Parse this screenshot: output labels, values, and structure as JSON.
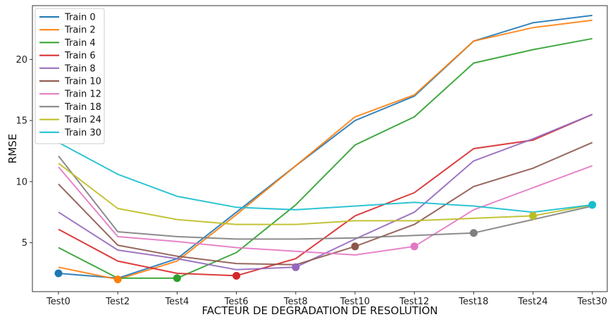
{
  "chart_data": {
    "type": "line",
    "title": "",
    "xlabel": "FACTEUR DE DEGRADATION DE RESOLUTION",
    "ylabel": "RMSE",
    "categories": [
      "Test0",
      "Test2",
      "Test4",
      "Test6",
      "Test8",
      "Test10",
      "Test12",
      "Test18",
      "Test24",
      "Test30"
    ],
    "ylim": [
      1.0,
      24.4
    ],
    "yticks": [
      5,
      10,
      15,
      20
    ],
    "grid": false,
    "legend_position": "top-left",
    "series": [
      {
        "name": "Train 0",
        "color": "#1f77b4",
        "values": [
          2.5,
          2.1,
          3.7,
          7.5,
          11.3,
          15.0,
          17.0,
          21.5,
          23.0,
          23.6
        ],
        "marker_index": 0
      },
      {
        "name": "Train 2",
        "color": "#ff7f0e",
        "values": [
          3.0,
          2.0,
          3.5,
          7.3,
          11.3,
          15.3,
          17.1,
          21.5,
          22.6,
          23.2
        ],
        "marker_index": 1
      },
      {
        "name": "Train 4",
        "color": "#2ca02c",
        "values": [
          4.6,
          2.1,
          2.1,
          4.2,
          8.1,
          13.0,
          15.3,
          19.7,
          20.8,
          21.7
        ],
        "marker_index": 2
      },
      {
        "name": "Train 6",
        "color": "#d62728",
        "values": [
          6.1,
          3.5,
          2.5,
          2.3,
          3.7,
          7.2,
          9.1,
          12.7,
          13.4,
          15.5
        ],
        "marker_index": 3
      },
      {
        "name": "Train 8",
        "color": "#9467bd",
        "values": [
          7.5,
          4.4,
          3.7,
          2.8,
          3.0,
          5.3,
          7.5,
          11.7,
          13.5,
          15.5
        ],
        "marker_index": 4
      },
      {
        "name": "Train 10",
        "color": "#8c564b",
        "values": [
          9.8,
          4.8,
          3.9,
          3.3,
          3.2,
          4.7,
          6.5,
          9.6,
          11.1,
          13.2
        ],
        "marker_index": 5
      },
      {
        "name": "Train 12",
        "color": "#e377c2",
        "values": [
          11.2,
          5.5,
          5.1,
          4.6,
          4.3,
          4.0,
          4.7,
          7.7,
          9.5,
          11.3
        ],
        "marker_index": 6
      },
      {
        "name": "Train 18",
        "color": "#7f7f7f",
        "values": [
          12.1,
          5.9,
          5.5,
          5.3,
          5.3,
          5.4,
          5.6,
          5.8,
          6.9,
          8.0
        ],
        "marker_index": 7
      },
      {
        "name": "Train 24",
        "color": "#bcbd22",
        "values": [
          11.5,
          7.8,
          6.9,
          6.5,
          6.5,
          6.8,
          6.8,
          7.0,
          7.2,
          8.1
        ],
        "marker_index": 8
      },
      {
        "name": "Train 30",
        "color": "#17becf",
        "values": [
          13.2,
          10.6,
          8.8,
          7.9,
          7.7,
          8.0,
          8.3,
          8.0,
          7.5,
          8.1
        ],
        "marker_index": 9
      }
    ]
  }
}
